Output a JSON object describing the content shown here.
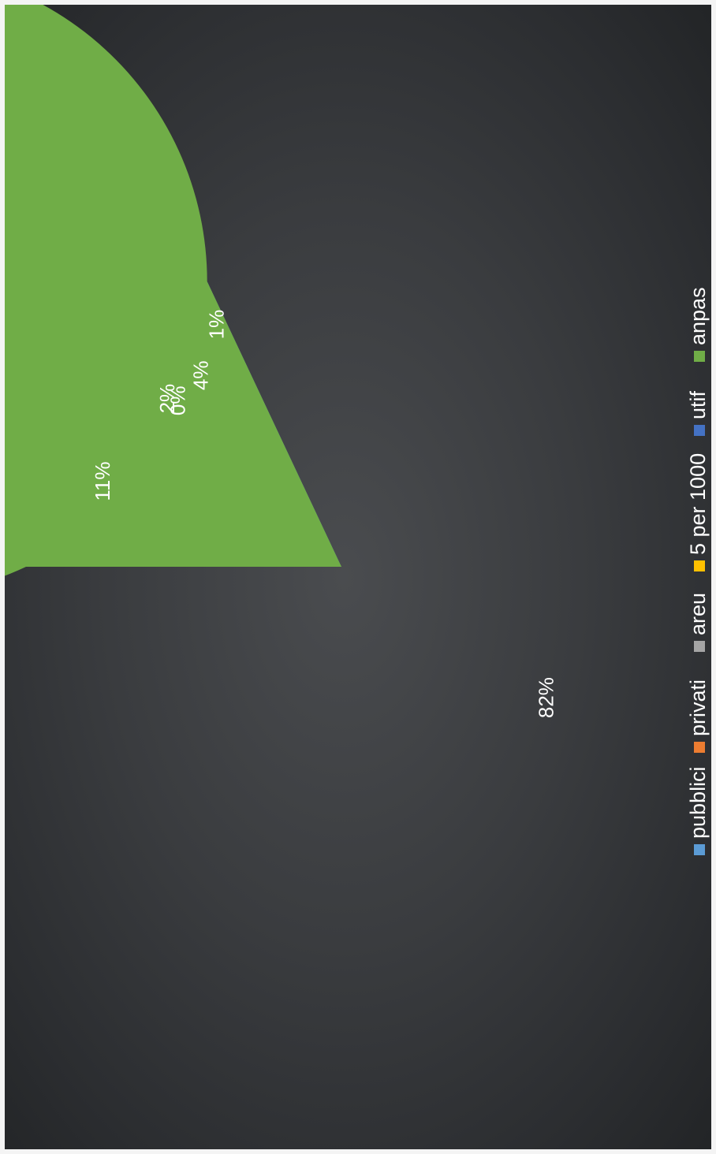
{
  "chart_data": {
    "type": "pie",
    "orientation": "rotated 90° counter-clockwise",
    "categories": [
      "pubblici",
      "privati",
      "areu",
      "5 per 1000",
      "utif",
      "anpas"
    ],
    "values": [
      11,
      2,
      0,
      4,
      1,
      82
    ],
    "data_labels": [
      "11%",
      "2%",
      "0%",
      "4%",
      "1%",
      "82%"
    ],
    "colors": [
      "#5b9bd5",
      "#ed7d31",
      "#a5a5a5",
      "#ffc000",
      "#4472c4",
      "#70ad47"
    ],
    "legend_position": "bottom",
    "title": ""
  }
}
